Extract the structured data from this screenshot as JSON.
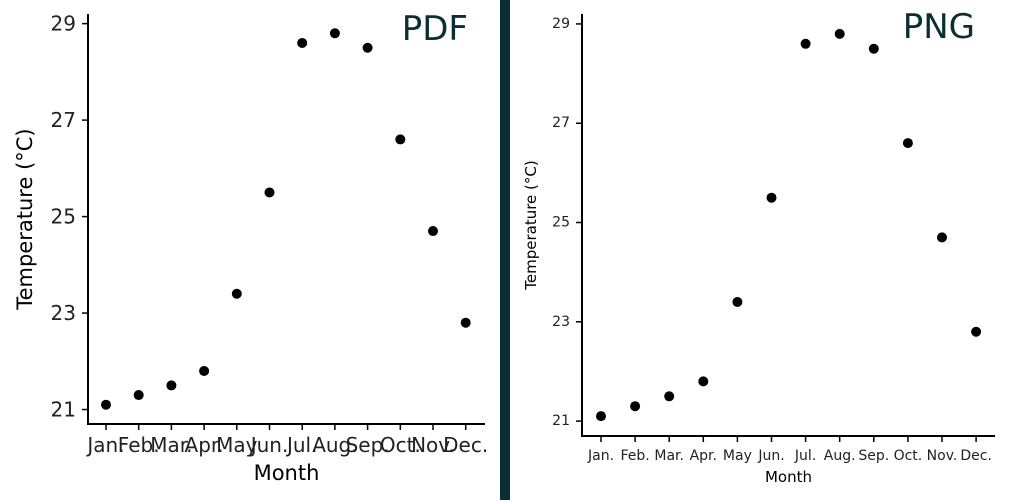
{
  "chart_data": [
    {
      "type": "scatter",
      "badge": "PDF",
      "xlabel": "Month",
      "ylabel": "Temperature (°C)",
      "categories": [
        "Jan.",
        "Feb.",
        "Mar.",
        "Apr.",
        "May",
        "Jun.",
        "Jul.",
        "Aug.",
        "Sep.",
        "Oct.",
        "Nov.",
        "Dec."
      ],
      "values": [
        21.1,
        21.3,
        21.5,
        21.8,
        23.4,
        25.5,
        28.6,
        28.8,
        28.5,
        26.6,
        24.7,
        22.8
      ],
      "yticks": [
        21,
        23,
        25,
        27,
        29
      ],
      "ylim": [
        20.7,
        29.2
      ],
      "grid": false,
      "legend": "none"
    },
    {
      "type": "scatter",
      "badge": "PNG",
      "xlabel": "Month",
      "ylabel": "Temperature (°C)",
      "categories": [
        "Jan.",
        "Feb.",
        "Mar.",
        "Apr.",
        "May",
        "Jun.",
        "Jul.",
        "Aug.",
        "Sep.",
        "Oct.",
        "Nov.",
        "Dec."
      ],
      "values": [
        21.1,
        21.3,
        21.5,
        21.8,
        23.4,
        25.5,
        28.6,
        28.8,
        28.5,
        26.6,
        24.7,
        22.8
      ],
      "yticks": [
        21,
        23,
        25,
        27,
        29
      ],
      "ylim": [
        20.7,
        29.2
      ],
      "grid": false,
      "legend": "none"
    }
  ]
}
